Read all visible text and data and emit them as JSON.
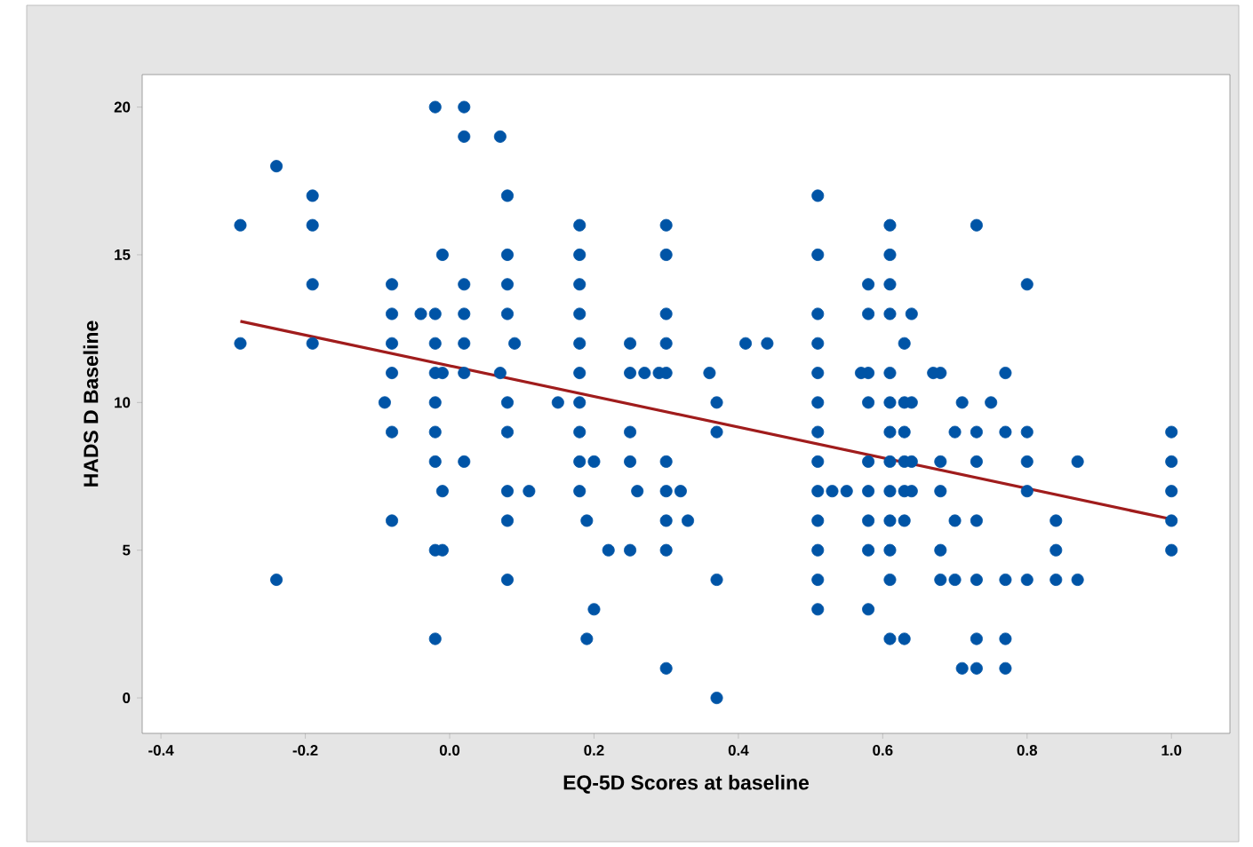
{
  "chart_data": {
    "type": "scatter",
    "xlabel": "EQ-5D Scores at baseline",
    "ylabel": "HADS D Baseline",
    "xlim": [
      -0.426,
      1.081
    ],
    "ylim": [
      -1.2,
      21.1
    ],
    "xticks": [
      -0.4,
      -0.2,
      {
        "value": 0,
        "label": "0.0"
      },
      0.2,
      0.4,
      0.6,
      0.8,
      {
        "value": 1,
        "label": "1.0"
      }
    ],
    "yticks": [
      0,
      5,
      10,
      15,
      20
    ],
    "marker": "circle",
    "grid": false,
    "series": [
      {
        "type": "scatter",
        "color": "#0054a6",
        "x": [
          -0.29,
          -0.29,
          -0.24,
          -0.24,
          -0.19,
          -0.19,
          -0.19,
          -0.19,
          -0.09,
          -0.08,
          -0.08,
          -0.08,
          -0.08,
          -0.08,
          -0.08,
          -0.04,
          -0.02,
          -0.02,
          -0.02,
          -0.02,
          -0.02,
          -0.02,
          -0.02,
          -0.02,
          -0.02,
          -0.01,
          -0.01,
          -0.01,
          -0.01,
          0.02,
          0.02,
          0.02,
          0.02,
          0.02,
          0.02,
          0.02,
          0.07,
          0.07,
          0.08,
          0.08,
          0.08,
          0.08,
          0.08,
          0.08,
          0.08,
          0.08,
          0.08,
          0.09,
          0.11,
          0.15,
          0.18,
          0.18,
          0.18,
          0.18,
          0.18,
          0.18,
          0.18,
          0.18,
          0.18,
          0.18,
          0.2,
          0.2,
          0.19,
          0.19,
          0.22,
          0.25,
          0.25,
          0.25,
          0.25,
          0.25,
          0.26,
          0.27,
          0.29,
          0.3,
          0.3,
          0.3,
          0.3,
          0.3,
          0.3,
          0.3,
          0.3,
          0.3,
          0.3,
          0.32,
          0.33,
          0.36,
          0.37,
          0.37,
          0.37,
          0.37,
          0.41,
          0.44,
          0.51,
          0.51,
          0.51,
          0.51,
          0.51,
          0.51,
          0.51,
          0.51,
          0.51,
          0.51,
          0.51,
          0.51,
          0.51,
          0.53,
          0.55,
          0.58,
          0.58,
          0.58,
          0.58,
          0.58,
          0.58,
          0.58,
          0.58,
          0.58,
          0.57,
          0.61,
          0.61,
          0.61,
          0.61,
          0.61,
          0.61,
          0.61,
          0.61,
          0.61,
          0.61,
          0.61,
          0.61,
          0.61,
          0.63,
          0.63,
          0.63,
          0.63,
          0.63,
          0.63,
          0.63,
          0.64,
          0.64,
          0.64,
          0.64,
          0.68,
          0.68,
          0.68,
          0.68,
          0.68,
          0.67,
          0.7,
          0.7,
          0.7,
          0.71,
          0.71,
          0.73,
          0.73,
          0.73,
          0.73,
          0.73,
          0.73,
          0.73,
          0.75,
          0.77,
          0.77,
          0.77,
          0.77,
          0.77,
          0.8,
          0.8,
          0.8,
          0.8,
          0.8,
          0.84,
          0.84,
          0.84,
          0.87,
          0.87,
          1.0,
          1.0,
          1.0,
          1.0,
          1.0
        ],
        "values": [
          16,
          12,
          18,
          4,
          17,
          16,
          14,
          12,
          10,
          14,
          13,
          12,
          11,
          9,
          6,
          13,
          13,
          20,
          12,
          11,
          10,
          9,
          8,
          5,
          2,
          11,
          15,
          7,
          5,
          20,
          19,
          14,
          13,
          12,
          11,
          8,
          19,
          11,
          17,
          15,
          14,
          13,
          10,
          9,
          7,
          6,
          4,
          12,
          7,
          10,
          16,
          15,
          14,
          13,
          12,
          11,
          10,
          9,
          8,
          7,
          8,
          3,
          6,
          2,
          5,
          5,
          12,
          11,
          9,
          8,
          7,
          11,
          11,
          11,
          16,
          15,
          13,
          12,
          8,
          7,
          6,
          5,
          1,
          7,
          6,
          11,
          10,
          9,
          4,
          0,
          12,
          12,
          17,
          15,
          13,
          12,
          11,
          10,
          9,
          8,
          7,
          6,
          5,
          4,
          3,
          7,
          7,
          14,
          13,
          11,
          10,
          8,
          7,
          6,
          5,
          3,
          11,
          16,
          15,
          14,
          13,
          11,
          10,
          9,
          8,
          7,
          6,
          5,
          4,
          2,
          12,
          10,
          9,
          8,
          7,
          6,
          2,
          13,
          10,
          8,
          7,
          11,
          8,
          7,
          5,
          4,
          11,
          9,
          6,
          4,
          10,
          1,
          16,
          9,
          8,
          6,
          4,
          2,
          1,
          10,
          11,
          9,
          4,
          2,
          1,
          14,
          9,
          8,
          7,
          4,
          6,
          5,
          4,
          8,
          4,
          9,
          8,
          7,
          6,
          5
        ]
      },
      {
        "type": "line",
        "marker": "none",
        "color": "#a01c1c",
        "x": [
          -0.29,
          1.0
        ],
        "values": [
          12.75,
          6.05
        ]
      }
    ]
  }
}
